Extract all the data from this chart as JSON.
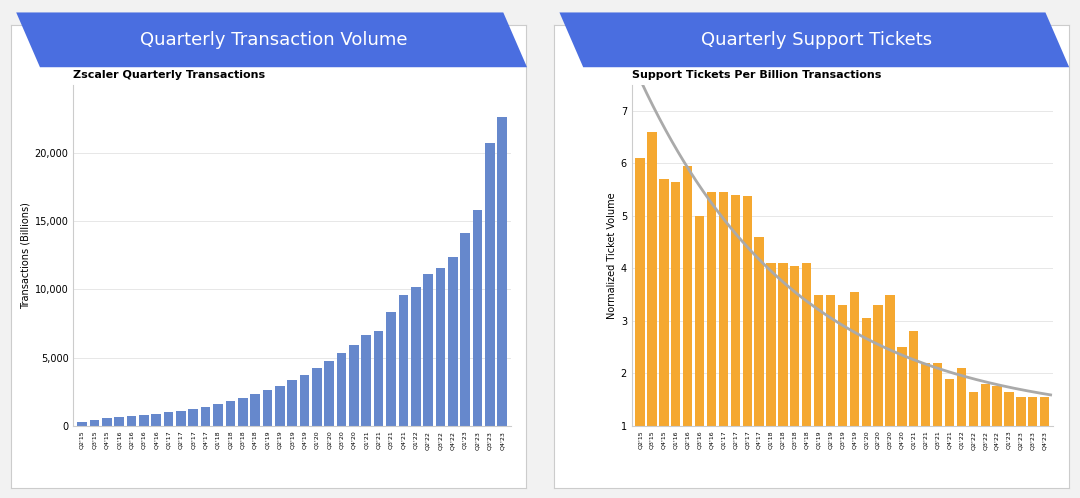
{
  "left_title": "Quarterly Transaction Volume",
  "right_title": "Quarterly Support Tickets",
  "left_chart_title": "Zscaler Quarterly Transactions",
  "right_chart_title": "Support Tickets Per Billion Transactions",
  "left_ylabel": "Transactions (Billions)",
  "right_ylabel": "Normalized Ticket Volume",
  "bar_color_left": "#6688CC",
  "bar_color_right": "#F5A830",
  "curve_color": "#AAAAAA",
  "background_color": "#FFFFFF",
  "header_color": "#4A6EE0",
  "outer_bg": "#F2F2F2",
  "quarters": [
    "Q2'15",
    "Q3'15",
    "Q4'15",
    "Q1'16",
    "Q2'16",
    "Q3'16",
    "Q4'16",
    "Q1'17",
    "Q2'17",
    "Q3'17",
    "Q4'17",
    "Q1'18",
    "Q2'18",
    "Q3'18",
    "Q4'18",
    "Q1'19",
    "Q2'19",
    "Q3'19",
    "Q4'19",
    "Q1'20",
    "Q2'20",
    "Q3'20",
    "Q4'20",
    "Q1'21",
    "Q2'21",
    "Q3'21",
    "Q4'21",
    "Q1'22",
    "Q2'22",
    "Q3'22",
    "Q4'22",
    "Q1'23",
    "Q2'23",
    "Q3'23",
    "Q4'23"
  ],
  "transactions": [
    300,
    450,
    580,
    630,
    720,
    780,
    880,
    980,
    1080,
    1200,
    1380,
    1620,
    1820,
    2050,
    2350,
    2650,
    2950,
    3350,
    3750,
    4250,
    4750,
    5350,
    5900,
    6650,
    6950,
    8350,
    9550,
    10150,
    11150,
    11550,
    12350,
    14150,
    15800,
    20700,
    22600
  ],
  "support_tickets": [
    6.1,
    6.6,
    5.7,
    5.65,
    5.95,
    5.0,
    5.45,
    5.45,
    5.4,
    5.38,
    4.6,
    4.1,
    4.1,
    4.05,
    4.1,
    3.5,
    3.5,
    3.3,
    3.55,
    3.05,
    3.3,
    3.5,
    2.5,
    2.8,
    2.2,
    2.2,
    1.9,
    2.1,
    1.65,
    1.8,
    1.75,
    1.65,
    1.55,
    1.55,
    1.55
  ]
}
